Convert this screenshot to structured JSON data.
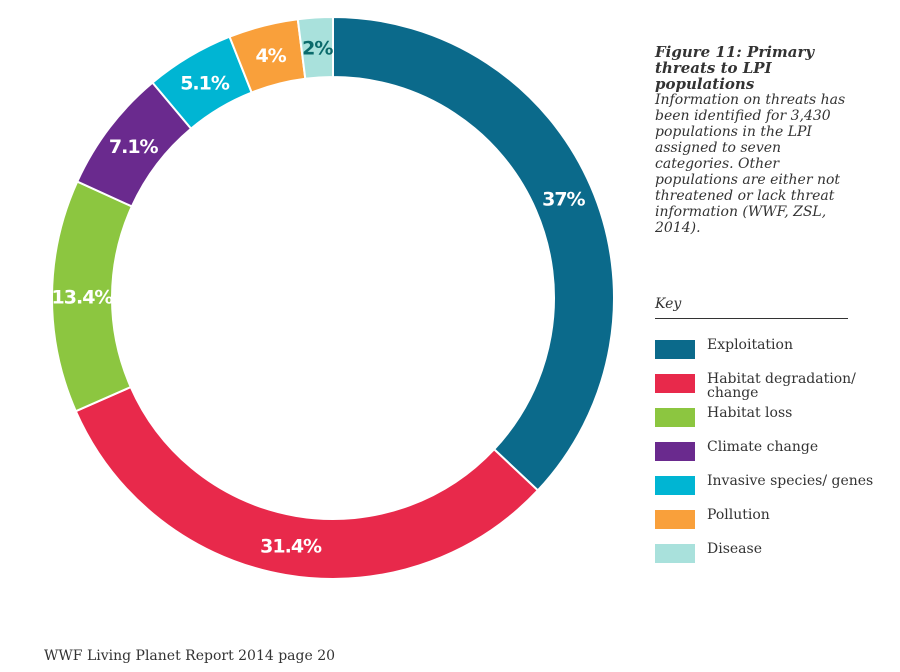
{
  "chart_data": {
    "type": "pie",
    "donut": true,
    "title": "Figure 11: Primary threats to LPI populations",
    "caption": "Information on threats has been identified for 3,430 populations in the LPI assigned to seven categories. Other populations are either not threatened or lack threat information (WWF, ZSL, 2014).",
    "legend_title": "Key",
    "legend_placement": "right",
    "slices": [
      {
        "name": "Exploitation",
        "value": 37,
        "label": "37%",
        "color": "#0b6a8b",
        "label_color": "#ffffff"
      },
      {
        "name": "Habitat degradation/ change",
        "value": 31.4,
        "label": "31.4%",
        "color": "#e8294b",
        "label_color": "#ffffff"
      },
      {
        "name": "Habitat loss",
        "value": 13.4,
        "label": "13.4%",
        "color": "#8cc640",
        "label_color": "#ffffff"
      },
      {
        "name": "Climate change",
        "value": 7.1,
        "label": "7.1%",
        "color": "#6a2a8e",
        "label_color": "#ffffff"
      },
      {
        "name": "Invasive species/ genes",
        "value": 5.1,
        "label": "5.1%",
        "color": "#00b5d3",
        "label_color": "#ffffff"
      },
      {
        "name": "Pollution",
        "value": 4,
        "label": "4%",
        "color": "#f9a03b",
        "label_color": "#ffffff"
      },
      {
        "name": "Disease",
        "value": 2,
        "label": "2%",
        "color": "#a9e1dc",
        "label_color": "#0b6a6b"
      }
    ]
  },
  "footer": "WWF Living Planet Report 2014 page 20"
}
